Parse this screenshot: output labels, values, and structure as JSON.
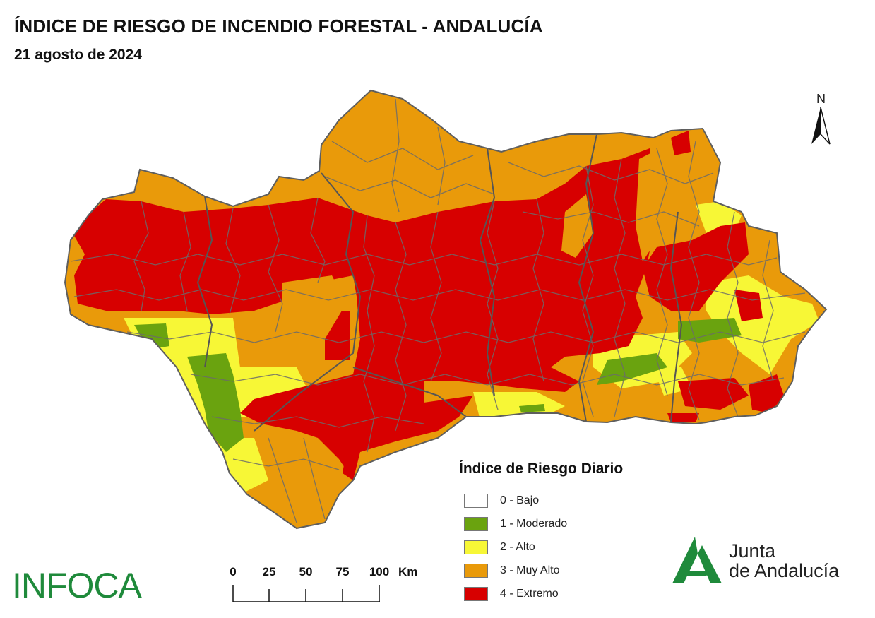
{
  "header": {
    "title": "ÍNDICE DE RIESGO DE INCENDIO FORESTAL - ANDALUCÍA",
    "date": "21 agosto de 2024"
  },
  "north_arrow": {
    "label": "N",
    "icon": "north-arrow-icon"
  },
  "legend": {
    "title": "Índice de Riesgo Diario",
    "items": [
      {
        "label": "0 - Bajo",
        "color": "#ffffff"
      },
      {
        "label": "1 - Moderado",
        "color": "#6aa30f"
      },
      {
        "label": "2 - Alto",
        "color": "#f7f736"
      },
      {
        "label": "3 - Muy Alto",
        "color": "#e99a0a"
      },
      {
        "label": "4 - Extremo",
        "color": "#d70000"
      }
    ]
  },
  "scale_bar": {
    "ticks": [
      "0",
      "25",
      "50",
      "75",
      "100"
    ],
    "unit": "Km"
  },
  "logos": {
    "infoca": "INFOCA",
    "junta_line1": "Junta",
    "junta_line2": "de Andalucía"
  },
  "colors": {
    "bajo": "#ffffff",
    "moderado": "#6aa30f",
    "alto": "#f7f736",
    "muy_alto": "#e99a0a",
    "extremo": "#d70000",
    "border": "#6b6b6b",
    "brand_green": "#1f8a3b"
  }
}
